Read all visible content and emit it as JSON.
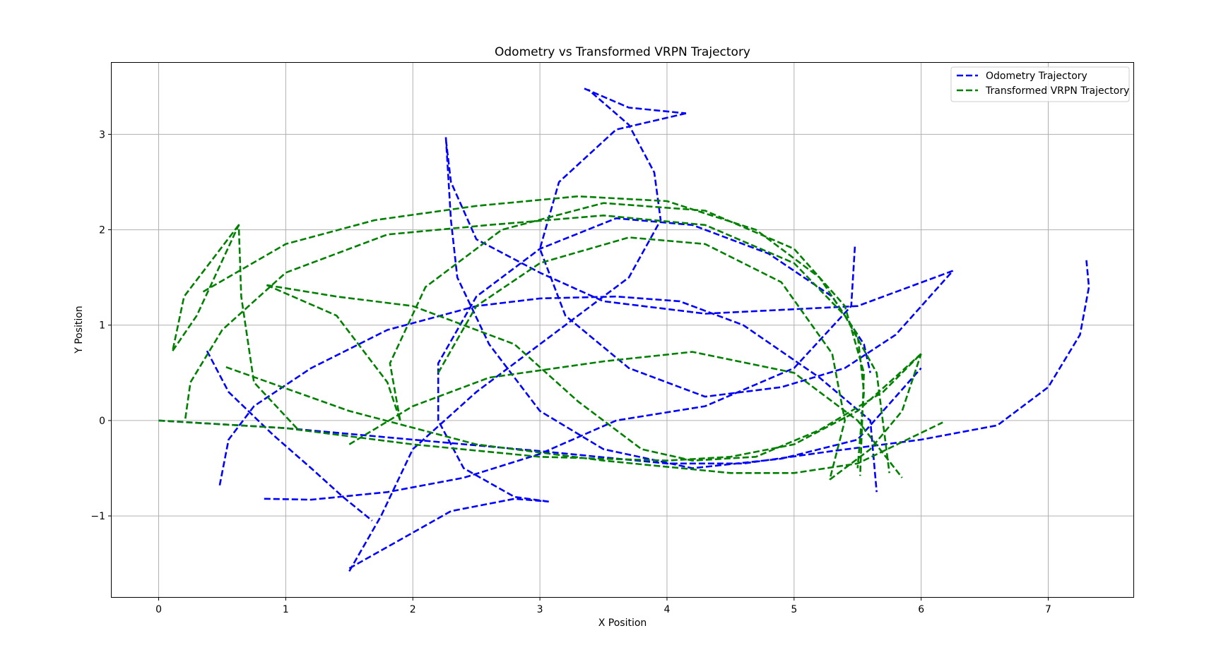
{
  "chart_data": {
    "type": "line",
    "title": "Odometry vs Transformed VRPN Trajectory",
    "xlabel": "X Position",
    "ylabel": "Y Position",
    "xlim": [
      -0.37,
      7.67
    ],
    "ylim": [
      -1.85,
      3.75
    ],
    "xticks": [
      0,
      1,
      2,
      3,
      4,
      5,
      6,
      7
    ],
    "yticks": [
      -1,
      0,
      1,
      2,
      3
    ],
    "ytick_labels": [
      "−1",
      "0",
      "1",
      "2",
      "3"
    ],
    "grid": true,
    "legend_position": "top-right",
    "series": [
      {
        "name": "Odometry Trajectory",
        "color": "#0000ff",
        "style": "dashed",
        "points": [
          [
            0.0,
            0.0
          ],
          [
            1.0,
            -0.08
          ],
          [
            2.0,
            -0.2
          ],
          [
            3.0,
            -0.32
          ],
          [
            4.0,
            -0.45
          ],
          [
            4.6,
            -0.45
          ],
          [
            5.3,
            -0.32
          ],
          [
            6.0,
            -0.2
          ],
          [
            6.6,
            -0.05
          ],
          [
            7.0,
            0.35
          ],
          [
            7.25,
            0.9
          ],
          [
            7.32,
            1.4
          ],
          [
            7.3,
            1.68
          ],
          null,
          [
            0.38,
            0.73
          ],
          [
            0.55,
            0.3
          ],
          [
            0.9,
            -0.15
          ],
          [
            1.2,
            -0.5
          ],
          [
            1.45,
            -0.8
          ],
          [
            1.68,
            -1.05
          ],
          null,
          [
            0.83,
            -0.82
          ],
          [
            1.2,
            -0.83
          ],
          [
            1.8,
            -0.75
          ],
          [
            2.4,
            -0.6
          ],
          [
            3.0,
            -0.35
          ],
          [
            3.6,
            0.0
          ],
          [
            4.3,
            0.15
          ],
          [
            5.0,
            0.55
          ],
          [
            5.45,
            1.2
          ],
          [
            5.48,
            1.85
          ],
          null,
          [
            0.48,
            -0.68
          ],
          [
            0.55,
            -0.2
          ],
          [
            0.75,
            0.15
          ],
          [
            1.2,
            0.55
          ],
          [
            1.8,
            0.95
          ],
          [
            2.5,
            1.2
          ],
          [
            3.0,
            1.28
          ],
          [
            3.6,
            1.3
          ],
          [
            4.1,
            1.25
          ],
          [
            4.6,
            1.0
          ],
          [
            5.2,
            0.45
          ],
          [
            5.6,
            0.0
          ],
          [
            5.65,
            -0.75
          ],
          null,
          [
            1.5,
            -1.58
          ],
          [
            1.75,
            -1.0
          ],
          [
            2.0,
            -0.3
          ],
          [
            2.5,
            0.3
          ],
          [
            3.2,
            1.0
          ],
          [
            3.7,
            1.5
          ],
          [
            3.95,
            2.1
          ],
          [
            3.9,
            2.6
          ],
          [
            3.7,
            3.1
          ],
          [
            3.38,
            3.47
          ],
          null,
          [
            3.35,
            3.48
          ],
          [
            3.7,
            3.28
          ],
          [
            4.15,
            3.22
          ],
          null,
          [
            4.15,
            3.22
          ],
          [
            3.6,
            3.05
          ],
          [
            3.15,
            2.5
          ],
          [
            3.0,
            1.8
          ],
          [
            3.2,
            1.1
          ],
          [
            3.7,
            0.55
          ],
          [
            4.3,
            0.25
          ],
          [
            4.9,
            0.35
          ],
          [
            5.4,
            0.55
          ],
          [
            5.8,
            0.9
          ],
          [
            6.25,
            1.57
          ],
          null,
          [
            2.26,
            2.97
          ],
          [
            2.3,
            2.1
          ],
          [
            2.35,
            1.5
          ],
          [
            2.6,
            0.8
          ],
          [
            3.0,
            0.1
          ],
          [
            3.5,
            -0.3
          ],
          [
            4.2,
            -0.5
          ],
          [
            4.9,
            -0.4
          ],
          [
            5.5,
            -0.2
          ],
          [
            6.0,
            0.55
          ],
          null,
          [
            6.25,
            1.57
          ],
          [
            5.5,
            1.2
          ],
          [
            4.3,
            1.12
          ],
          [
            3.5,
            1.25
          ],
          [
            3.0,
            1.55
          ],
          [
            2.5,
            1.9
          ],
          [
            2.3,
            2.5
          ],
          [
            2.26,
            2.95
          ],
          null,
          [
            3.07,
            -0.85
          ],
          [
            2.8,
            -0.8
          ],
          [
            2.4,
            -0.5
          ],
          [
            2.2,
            0.0
          ],
          [
            2.2,
            0.6
          ],
          [
            2.5,
            1.3
          ],
          [
            3.0,
            1.8
          ],
          [
            3.6,
            2.12
          ],
          [
            4.2,
            2.05
          ],
          [
            4.8,
            1.75
          ],
          [
            5.3,
            1.3
          ],
          [
            5.55,
            0.8
          ],
          [
            5.6,
            0.5
          ],
          null,
          [
            1.5,
            -1.55
          ],
          [
            1.9,
            -1.25
          ],
          [
            2.3,
            -0.95
          ],
          [
            2.8,
            -0.82
          ],
          [
            3.07,
            -0.85
          ]
        ]
      },
      {
        "name": "Transformed VRPN Trajectory",
        "color": "#008000",
        "style": "dashed",
        "points": [
          [
            0.0,
            0.0
          ],
          [
            1.0,
            -0.08
          ],
          [
            2.0,
            -0.25
          ],
          [
            3.0,
            -0.38
          ],
          [
            4.0,
            -0.42
          ],
          [
            4.5,
            -0.38
          ],
          [
            5.0,
            -0.25
          ],
          [
            5.5,
            0.1
          ],
          [
            6.0,
            0.7
          ],
          null,
          [
            0.21,
            0.02
          ],
          [
            0.25,
            0.4
          ],
          [
            0.5,
            0.95
          ],
          [
            1.0,
            1.55
          ],
          [
            1.8,
            1.95
          ],
          [
            2.6,
            2.05
          ],
          [
            3.5,
            2.15
          ],
          [
            4.3,
            2.05
          ],
          [
            5.0,
            1.65
          ],
          [
            5.4,
            1.1
          ],
          [
            5.65,
            0.5
          ],
          [
            5.75,
            -0.55
          ],
          null,
          [
            0.11,
            0.73
          ],
          [
            0.3,
            1.1
          ],
          [
            0.63,
            2.05
          ],
          [
            0.65,
            1.3
          ],
          [
            0.75,
            0.4
          ],
          [
            1.1,
            -0.1
          ],
          null,
          [
            0.85,
            1.42
          ],
          [
            1.4,
            1.1
          ],
          [
            1.8,
            0.4
          ],
          [
            1.9,
            0.0
          ],
          null,
          [
            0.85,
            1.42
          ],
          [
            1.4,
            1.3
          ],
          [
            2.0,
            1.2
          ],
          [
            2.8,
            0.8
          ],
          [
            3.3,
            0.2
          ],
          [
            3.8,
            -0.3
          ],
          [
            4.2,
            -0.42
          ],
          [
            4.7,
            -0.38
          ],
          [
            5.2,
            -0.1
          ],
          [
            5.7,
            0.3
          ],
          [
            6.0,
            0.7
          ],
          null,
          [
            0.53,
            0.56
          ],
          [
            1.5,
            0.1
          ],
          [
            2.5,
            -0.25
          ],
          [
            3.5,
            -0.42
          ],
          [
            4.5,
            -0.55
          ],
          [
            5.0,
            -0.55
          ],
          [
            5.5,
            -0.45
          ],
          [
            6.17,
            -0.02
          ],
          null,
          [
            1.5,
            -0.25
          ],
          [
            2.0,
            0.15
          ],
          [
            2.6,
            0.45
          ],
          [
            3.5,
            0.62
          ],
          [
            4.2,
            0.72
          ],
          [
            5.0,
            0.5
          ],
          [
            5.5,
            0.0
          ],
          [
            5.85,
            -0.6
          ],
          null,
          [
            1.9,
            0.0
          ],
          [
            1.82,
            0.6
          ],
          [
            2.1,
            1.4
          ],
          [
            2.7,
            2.0
          ],
          [
            3.5,
            2.28
          ],
          [
            4.3,
            2.2
          ],
          [
            5.0,
            1.8
          ],
          [
            5.4,
            1.2
          ],
          [
            5.55,
            0.5
          ],
          [
            5.52,
            -0.58
          ],
          null,
          [
            0.63,
            2.05
          ],
          [
            0.2,
            1.3
          ],
          [
            0.11,
            0.73
          ],
          null,
          [
            0.35,
            1.35
          ],
          [
            1.0,
            1.85
          ],
          [
            1.7,
            2.1
          ],
          [
            2.5,
            2.25
          ],
          [
            3.3,
            2.35
          ],
          [
            4.0,
            2.3
          ],
          [
            4.7,
            2.0
          ],
          [
            5.2,
            1.5
          ],
          [
            5.5,
            0.9
          ],
          [
            5.55,
            0.3
          ],
          [
            5.5,
            -0.5
          ],
          null,
          [
            2.2,
            0.5
          ],
          [
            2.5,
            1.2
          ],
          [
            3.0,
            1.65
          ],
          [
            3.7,
            1.92
          ],
          [
            4.3,
            1.85
          ],
          [
            4.9,
            1.45
          ],
          [
            5.3,
            0.7
          ],
          [
            5.4,
            0.0
          ],
          [
            5.28,
            -0.62
          ],
          null,
          [
            5.28,
            -0.62
          ],
          [
            5.6,
            -0.3
          ],
          [
            5.85,
            0.1
          ],
          [
            6.0,
            0.7
          ]
        ]
      }
    ]
  }
}
